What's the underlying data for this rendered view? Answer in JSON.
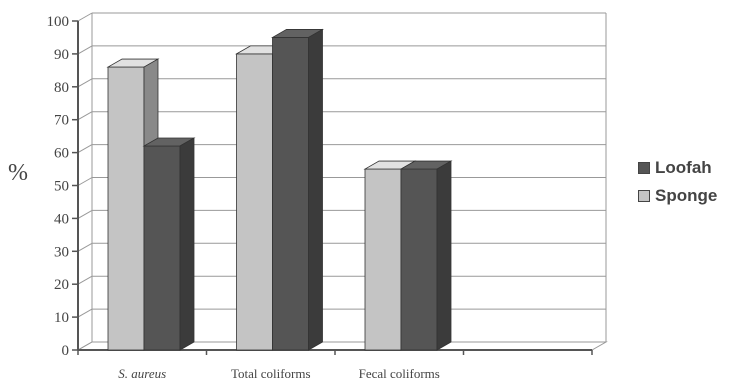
{
  "chart_data": {
    "type": "bar",
    "title": "",
    "xlabel": "",
    "ylabel": "%",
    "ylim": [
      0,
      100
    ],
    "yticks": [
      "0",
      "10",
      "20",
      "30",
      "40",
      "50",
      "60",
      "70",
      "80",
      "90",
      "100"
    ],
    "categories": [
      "S. aureus",
      "Total coliforms",
      "Fecal coliforms"
    ],
    "series": [
      {
        "name": "Sponge",
        "values": [
          86,
          90,
          55
        ]
      },
      {
        "name": "Loofah",
        "values": [
          62,
          95,
          55
        ]
      }
    ],
    "grid": true,
    "legend_position": "right",
    "colors": {
      "Sponge": "#c4c4c4",
      "Loofah": "#555555",
      "grid": "#999999",
      "axis": "#555555"
    }
  },
  "legend": [
    {
      "label": "Loofah",
      "color": "#555555"
    },
    {
      "label": "Sponge",
      "color": "#c4c4c4"
    }
  ]
}
